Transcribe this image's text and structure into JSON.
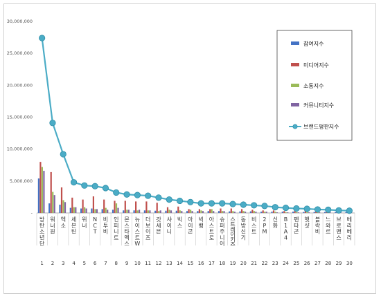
{
  "chart_data": {
    "type": "bar",
    "title": "",
    "xlabel": "",
    "ylabel": "",
    "ylim": [
      0,
      30000000
    ],
    "yticks": [
      "30,000,000",
      "25,000,000",
      "20,000,000",
      "15,000,000",
      "10,000,000",
      "5,000,000",
      "-"
    ],
    "grid": false,
    "legend_position": "right",
    "categories": [
      "방탄소년단",
      "워너원",
      "엑소",
      "세븐틴",
      "위너",
      "NCT",
      "비투비",
      "인피니트",
      "몬스타엑스",
      "뉴이스트W",
      "더보이즈",
      "갓세븐",
      "샤이니",
      "빅스",
      "아이콘",
      "빅뱅",
      "아스트로",
      "슈퍼주니어",
      "스트레이키즈",
      "동방신기",
      "비스트",
      "2PM",
      "신화",
      "B1A4",
      "펜타곤",
      "햇샷",
      "블락비",
      "느와르",
      "브로맨스",
      "베리베리"
    ],
    "ranks": [
      "1",
      "2",
      "3",
      "4",
      "5",
      "6",
      "7",
      "8",
      "9",
      "10",
      "11",
      "12",
      "13",
      "14",
      "15",
      "16",
      "17",
      "18",
      "19",
      "20",
      "21",
      "22",
      "23",
      "24",
      "25",
      "26",
      "27",
      "28",
      "29",
      "30"
    ],
    "series": [
      {
        "name": "참여지수",
        "type": "bar",
        "color": "#4472c4",
        "values": [
          5400000,
          1500000,
          1300000,
          800000,
          700000,
          700000,
          600000,
          500000,
          400000,
          400000,
          400000,
          350000,
          350000,
          350000,
          300000,
          300000,
          300000,
          300000,
          250000,
          250000,
          250000,
          200000,
          200000,
          200000,
          200000,
          150000,
          150000,
          150000,
          150000,
          150000
        ]
      },
      {
        "name": "미디어지수",
        "type": "bar",
        "color": "#c0504d",
        "values": [
          8000000,
          6400000,
          4000000,
          2400000,
          2100000,
          2600000,
          2100000,
          1900000,
          1900000,
          1800000,
          1800000,
          1600000,
          900000,
          1000000,
          600000,
          600000,
          600000,
          700000,
          700000,
          600000,
          500000,
          400000,
          400000,
          300000,
          300000,
          300000,
          300000,
          300000,
          200000,
          200000
        ]
      },
      {
        "name": "소통지수",
        "type": "bar",
        "color": "#9bbb59",
        "values": [
          7200000,
          3300000,
          2000000,
          900000,
          900000,
          600000,
          800000,
          1500000,
          500000,
          400000,
          400000,
          300000,
          500000,
          400000,
          500000,
          400000,
          600000,
          300000,
          300000,
          300000,
          300000,
          200000,
          200000,
          100000,
          150000,
          150000,
          100000,
          100000,
          100000,
          100000
        ]
      },
      {
        "name": "커뮤니티지수",
        "type": "bar",
        "color": "#8064a2",
        "values": [
          6600000,
          2800000,
          1700000,
          900000,
          700000,
          600000,
          500000,
          800000,
          500000,
          500000,
          400000,
          400000,
          400000,
          300000,
          300000,
          300000,
          300000,
          300000,
          200000,
          200000,
          200000,
          200000,
          100000,
          100000,
          100000,
          100000,
          100000,
          100000,
          100000,
          100000
        ]
      },
      {
        "name": "브랜드평판지수",
        "type": "line",
        "color": "#4bacc6",
        "values": [
          27400000,
          14100000,
          9200000,
          4800000,
          4300000,
          4200000,
          3900000,
          3200000,
          2900000,
          2800000,
          2700000,
          2400000,
          2100000,
          1900000,
          1700000,
          1500000,
          1500000,
          1500000,
          1400000,
          1300000,
          1200000,
          1100000,
          900000,
          800000,
          700000,
          650000,
          550000,
          500000,
          400000,
          350000
        ]
      }
    ]
  }
}
